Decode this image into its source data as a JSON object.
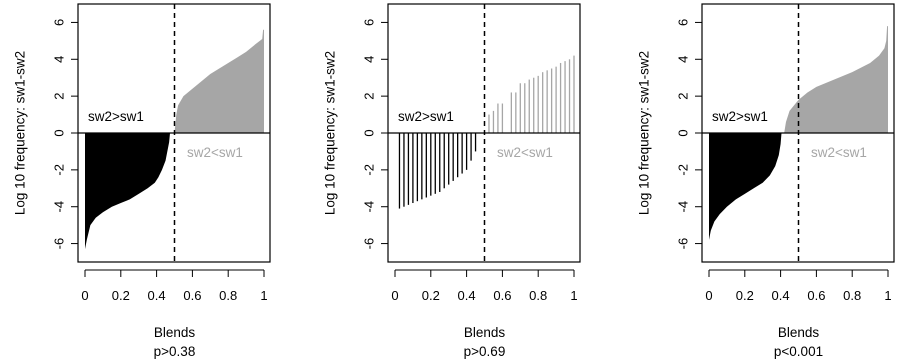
{
  "chart_data": [
    {
      "type": "bar",
      "style": "filled",
      "ylabel": "Log 10 frequency: sw1-sw2",
      "xlabel": "Blends",
      "subtitle": "p>0.38",
      "xlim": [
        0,
        1
      ],
      "ylim": [
        -7,
        7
      ],
      "xticks": [
        "0",
        "0.2",
        "0.4",
        "0.6",
        "0.8",
        "1"
      ],
      "yticks": [
        "-6",
        "-4",
        "-2",
        "0",
        "2",
        "4",
        "6"
      ],
      "threshold": 0.5,
      "labels": {
        "above": "sw2>sw1",
        "below": "sw2<sw1"
      },
      "colors": {
        "negative": "#000000",
        "positive": "#a6a6a6",
        "below_label": "#a6a6a6"
      },
      "negative_points": [
        [
          0.0,
          -6.3
        ],
        [
          0.01,
          -5.8
        ],
        [
          0.03,
          -5.0
        ],
        [
          0.06,
          -4.6
        ],
        [
          0.1,
          -4.3
        ],
        [
          0.15,
          -4.0
        ],
        [
          0.2,
          -3.8
        ],
        [
          0.25,
          -3.6
        ],
        [
          0.3,
          -3.3
        ],
        [
          0.35,
          -3.0
        ],
        [
          0.39,
          -2.7
        ],
        [
          0.41,
          -2.4
        ],
        [
          0.43,
          -2.0
        ],
        [
          0.45,
          -1.5
        ],
        [
          0.46,
          -1.0
        ],
        [
          0.47,
          -0.5
        ],
        [
          0.475,
          0.0
        ]
      ],
      "positive_points": [
        [
          0.5,
          0.0
        ],
        [
          0.51,
          1.0
        ],
        [
          0.52,
          1.5
        ],
        [
          0.55,
          2.0
        ],
        [
          0.6,
          2.4
        ],
        [
          0.65,
          2.8
        ],
        [
          0.7,
          3.2
        ],
        [
          0.75,
          3.5
        ],
        [
          0.8,
          3.8
        ],
        [
          0.85,
          4.1
        ],
        [
          0.9,
          4.4
        ],
        [
          0.95,
          4.8
        ],
        [
          0.99,
          5.1
        ],
        [
          0.995,
          5.6
        ],
        [
          1.0,
          5.6
        ]
      ]
    },
    {
      "type": "bar",
      "style": "stems",
      "ylabel": "Log 10 frequency: sw1-sw2",
      "xlabel": "Blends",
      "subtitle": "p>0.69",
      "xlim": [
        0,
        1
      ],
      "ylim": [
        -7,
        7
      ],
      "xticks": [
        "0",
        "0.2",
        "0.4",
        "0.6",
        "0.8",
        "1"
      ],
      "yticks": [
        "-6",
        "-4",
        "-2",
        "0",
        "2",
        "4",
        "6"
      ],
      "threshold": 0.5,
      "labels": {
        "above": "sw2>sw1",
        "below": "sw2<sw1"
      },
      "colors": {
        "negative": "#000000",
        "positive": "#a6a6a6",
        "below_label": "#a6a6a6"
      },
      "stems": [
        [
          0.025,
          -4.1
        ],
        [
          0.05,
          -4.0
        ],
        [
          0.075,
          -3.9
        ],
        [
          0.1,
          -3.8
        ],
        [
          0.125,
          -3.7
        ],
        [
          0.15,
          -3.6
        ],
        [
          0.175,
          -3.5
        ],
        [
          0.2,
          -3.4
        ],
        [
          0.225,
          -3.3
        ],
        [
          0.25,
          -3.2
        ],
        [
          0.275,
          -3.0
        ],
        [
          0.3,
          -2.8
        ],
        [
          0.325,
          -2.6
        ],
        [
          0.35,
          -2.4
        ],
        [
          0.375,
          -2.2
        ],
        [
          0.4,
          -2.0
        ],
        [
          0.425,
          -1.5
        ],
        [
          0.45,
          -1.0
        ],
        [
          0.525,
          1.0
        ],
        [
          0.55,
          1.2
        ],
        [
          0.575,
          1.6
        ],
        [
          0.6,
          1.6
        ],
        [
          0.65,
          2.2
        ],
        [
          0.675,
          2.2
        ],
        [
          0.7,
          2.7
        ],
        [
          0.725,
          2.7
        ],
        [
          0.75,
          2.9
        ],
        [
          0.775,
          3.0
        ],
        [
          0.8,
          3.1
        ],
        [
          0.825,
          3.3
        ],
        [
          0.85,
          3.4
        ],
        [
          0.875,
          3.5
        ],
        [
          0.9,
          3.6
        ],
        [
          0.925,
          3.8
        ],
        [
          0.95,
          3.9
        ],
        [
          0.975,
          4.0
        ],
        [
          1.0,
          4.2
        ]
      ]
    },
    {
      "type": "bar",
      "style": "filled",
      "ylabel": "Log 10 frequency: sw1-sw2",
      "xlabel": "Blends",
      "subtitle": "p<0.001",
      "xlim": [
        0,
        1
      ],
      "ylim": [
        -7,
        7
      ],
      "xticks": [
        "0",
        "0.2",
        "0.4",
        "0.6",
        "0.8",
        "1"
      ],
      "yticks": [
        "-6",
        "-4",
        "-2",
        "0",
        "2",
        "4",
        "6"
      ],
      "threshold": 0.5,
      "labels": {
        "above": "sw2>sw1",
        "below": "sw2<sw1"
      },
      "colors": {
        "negative": "#000000",
        "positive": "#a6a6a6",
        "below_label": "#a6a6a6"
      },
      "negative_points": [
        [
          0.0,
          -5.8
        ],
        [
          0.01,
          -5.3
        ],
        [
          0.03,
          -4.8
        ],
        [
          0.06,
          -4.4
        ],
        [
          0.1,
          -4.0
        ],
        [
          0.15,
          -3.6
        ],
        [
          0.2,
          -3.3
        ],
        [
          0.25,
          -3.0
        ],
        [
          0.3,
          -2.7
        ],
        [
          0.34,
          -2.3
        ],
        [
          0.37,
          -1.8
        ],
        [
          0.39,
          -1.2
        ],
        [
          0.4,
          -0.6
        ],
        [
          0.405,
          0.0
        ]
      ],
      "positive_points": [
        [
          0.42,
          0.0
        ],
        [
          0.43,
          0.6
        ],
        [
          0.45,
          1.2
        ],
        [
          0.5,
          1.8
        ],
        [
          0.55,
          2.2
        ],
        [
          0.6,
          2.5
        ],
        [
          0.7,
          2.9
        ],
        [
          0.8,
          3.3
        ],
        [
          0.9,
          3.8
        ],
        [
          0.95,
          4.2
        ],
        [
          0.98,
          4.6
        ],
        [
          0.99,
          5.0
        ],
        [
          0.995,
          5.8
        ],
        [
          1.0,
          5.8
        ]
      ]
    }
  ]
}
